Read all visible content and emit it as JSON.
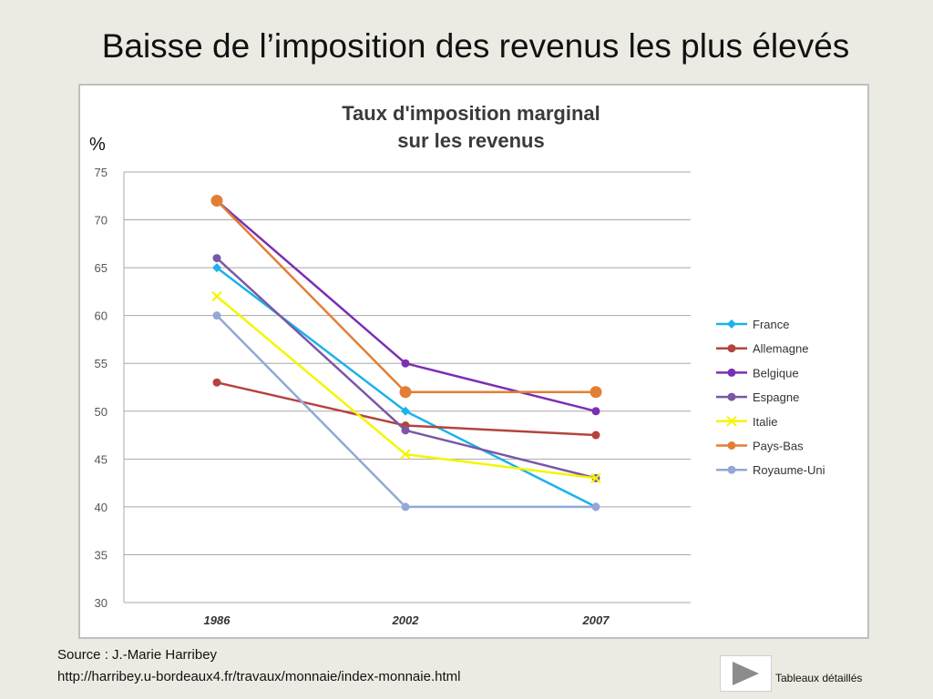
{
  "slide": {
    "title": "Baisse de l’imposition des revenus les plus élevés",
    "source_line1": "Source : J.-Marie Harribey",
    "source_line2": "http://harribey.u-bordeaux4.fr/travaux/monnaie/index-monnaie.html",
    "nav_label": "Tableaux détaillés",
    "nav_icon": "play-arrow-icon"
  },
  "chart_data": {
    "type": "line",
    "title": "Taux d'imposition marginal sur les revenus",
    "title_lines": [
      "Taux d'imposition marginal",
      "sur les revenus"
    ],
    "ylabel": "%",
    "xlabel": "",
    "categories": [
      "1986",
      "2002",
      "2007"
    ],
    "ylim": [
      30,
      75
    ],
    "yticks": [
      30,
      35,
      40,
      45,
      50,
      55,
      60,
      65,
      70,
      75
    ],
    "grid": true,
    "legend_position": "right",
    "series": [
      {
        "name": "France",
        "color": "#1cb2ea",
        "marker": "diamond",
        "values": [
          65,
          50,
          40
        ]
      },
      {
        "name": "Allemagne",
        "color": "#b5433e",
        "marker": "circle",
        "values": [
          53,
          48.5,
          47.5
        ]
      },
      {
        "name": "Belgique",
        "color": "#7b2fb3",
        "marker": "circle",
        "values": [
          72,
          55,
          50
        ]
      },
      {
        "name": "Espagne",
        "color": "#7a58a5",
        "marker": "circle",
        "values": [
          66,
          48,
          43
        ]
      },
      {
        "name": "Italie",
        "color": "#f5f500",
        "marker": "x",
        "values": [
          62,
          45.5,
          43
        ]
      },
      {
        "name": "Pays-Bas",
        "color": "#e37e36",
        "marker": "circle-large",
        "values": [
          72,
          52,
          52
        ]
      },
      {
        "name": "Royaume-Uni",
        "color": "#93a8d6",
        "marker": "circle",
        "values": [
          60,
          40,
          40
        ]
      }
    ]
  }
}
